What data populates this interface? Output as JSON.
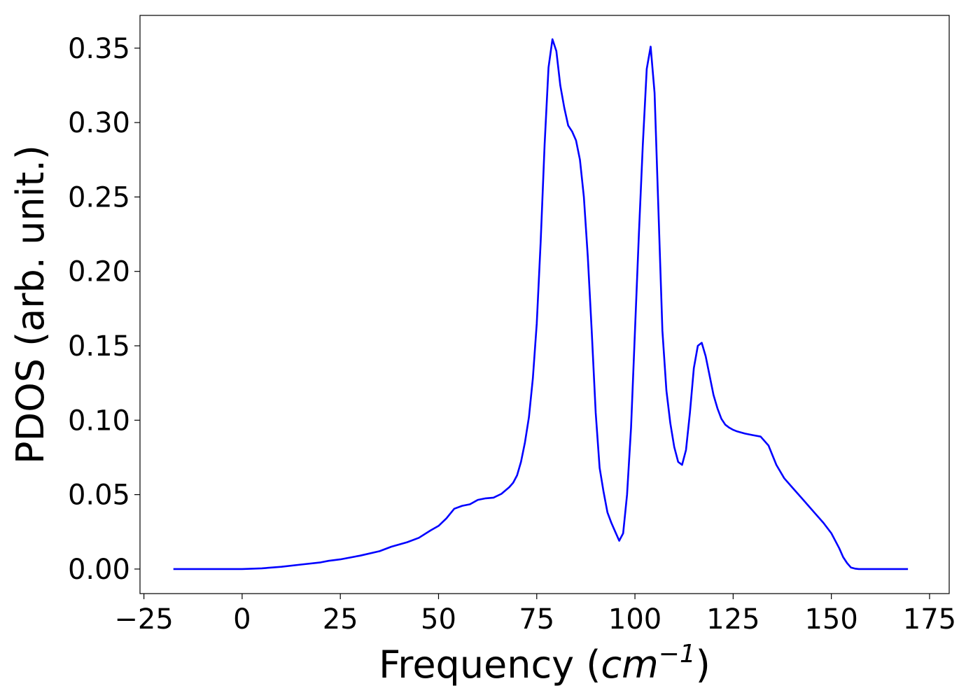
{
  "chart_data": {
    "type": "line",
    "xlabel": "Frequency (cm⁻¹)",
    "xlabel_parts": {
      "main": "Frequency (",
      "unit": "cm",
      "exp": "−1",
      "close": ")"
    },
    "ylabel": "PDOS (arb. unit.)",
    "xlim": [
      -26,
      180
    ],
    "ylim": [
      -0.0165,
      0.372
    ],
    "xticks": [
      -25,
      0,
      25,
      50,
      75,
      100,
      125,
      150,
      175
    ],
    "xtick_labels": [
      "−25",
      "0",
      "25",
      "50",
      "75",
      "100",
      "125",
      "150",
      "175"
    ],
    "yticks": [
      0.0,
      0.05,
      0.1,
      0.15,
      0.2,
      0.25,
      0.3,
      0.35
    ],
    "ytick_labels": [
      "0.00",
      "0.05",
      "0.10",
      "0.15",
      "0.20",
      "0.25",
      "0.30",
      "0.35"
    ],
    "grid": false,
    "series": [
      {
        "color": "#0000ff",
        "x": [
          -17.5,
          -10,
          0,
          5,
          10,
          15,
          20,
          22,
          25,
          30,
          35,
          38,
          42,
          45,
          48,
          50,
          52,
          54,
          56,
          58,
          60,
          62,
          64,
          66,
          68,
          69,
          70,
          71,
          72,
          73,
          74,
          75,
          76,
          77,
          78,
          79,
          80,
          81,
          82,
          83,
          84,
          85,
          86,
          87,
          88,
          89,
          90,
          91,
          92,
          93,
          94,
          95,
          96,
          97,
          98,
          99,
          100,
          101,
          102,
          103,
          104,
          105,
          106,
          107,
          108,
          109,
          110,
          111,
          112,
          113,
          114,
          115,
          116,
          117,
          118,
          119,
          120,
          121,
          122,
          123,
          124,
          125,
          126,
          128,
          130,
          132,
          134,
          136,
          138,
          140,
          142,
          144,
          146,
          148,
          150,
          152,
          153,
          154,
          155,
          156,
          157,
          160,
          165,
          169.5
        ],
        "y": [
          0.0,
          0.0,
          0.0,
          0.0005,
          0.0015,
          0.003,
          0.0045,
          0.0055,
          0.0065,
          0.009,
          0.012,
          0.015,
          0.018,
          0.021,
          0.026,
          0.029,
          0.034,
          0.0405,
          0.0425,
          0.0435,
          0.0465,
          0.0475,
          0.048,
          0.0505,
          0.055,
          0.058,
          0.063,
          0.072,
          0.085,
          0.102,
          0.128,
          0.165,
          0.22,
          0.285,
          0.337,
          0.356,
          0.348,
          0.325,
          0.31,
          0.298,
          0.294,
          0.288,
          0.275,
          0.25,
          0.21,
          0.16,
          0.105,
          0.068,
          0.052,
          0.038,
          0.031,
          0.025,
          0.019,
          0.024,
          0.05,
          0.095,
          0.16,
          0.225,
          0.285,
          0.336,
          0.351,
          0.32,
          0.24,
          0.16,
          0.12,
          0.098,
          0.082,
          0.072,
          0.07,
          0.08,
          0.105,
          0.135,
          0.15,
          0.152,
          0.143,
          0.13,
          0.117,
          0.108,
          0.101,
          0.097,
          0.095,
          0.0935,
          0.0925,
          0.091,
          0.09,
          0.089,
          0.083,
          0.07,
          0.061,
          0.055,
          0.049,
          0.043,
          0.037,
          0.031,
          0.024,
          0.014,
          0.008,
          0.004,
          0.001,
          0.0003,
          0.0,
          0.0,
          0.0,
          0.0
        ]
      }
    ]
  }
}
